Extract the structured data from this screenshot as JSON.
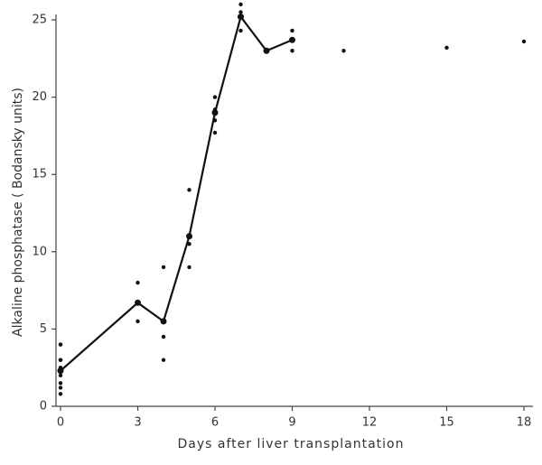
{
  "chart_data": {
    "type": "line",
    "x_label": "Days after liver transplantation",
    "y_label": "Alkaline phosphatase ( Bodansky units)",
    "xlim": [
      0,
      18
    ],
    "ylim": [
      0,
      25
    ],
    "xticks": [
      0,
      3,
      6,
      9,
      12,
      15,
      18
    ],
    "yticks": [
      0,
      5,
      10,
      15,
      20,
      25
    ],
    "color": "#111111",
    "x": [
      0,
      3,
      4,
      5,
      6,
      7,
      8,
      9
    ],
    "values": [
      2.3,
      6.7,
      5.5,
      11,
      19,
      25.2,
      23.0,
      23.7
    ],
    "points": {
      "x": [
        0,
        0,
        0,
        0,
        0,
        0,
        0,
        0,
        0,
        3,
        3,
        3,
        4,
        4,
        4,
        5,
        5,
        5,
        6,
        6,
        6,
        6,
        7,
        7,
        7,
        8,
        9,
        9,
        11,
        15,
        18
      ],
      "y": [
        4.0,
        4.0,
        3.0,
        3.0,
        2.5,
        2.0,
        1.5,
        1.2,
        0.8,
        8.0,
        6.7,
        5.5,
        9.0,
        4.5,
        3.0,
        14,
        10.5,
        9.0,
        20,
        19.2,
        18.5,
        17.7,
        26,
        25.5,
        24.3,
        23.0,
        24.3,
        23.0,
        23.0,
        23.2,
        23.6
      ]
    }
  }
}
